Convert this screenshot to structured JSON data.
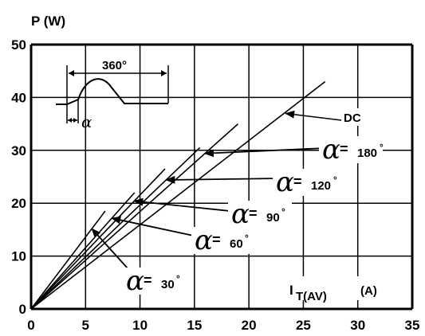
{
  "chart_data": {
    "type": "line",
    "ylabel": "P (W)",
    "xlabel_main": "I",
    "xlabel_sub": "T(AV)",
    "xlabel_unit": "(A)",
    "xlim": [
      0,
      35
    ],
    "ylim": [
      0,
      50
    ],
    "x_ticks": [
      "0",
      "5",
      "10",
      "15",
      "20",
      "25",
      "30",
      "35"
    ],
    "y_ticks": [
      "0",
      "10",
      "20",
      "30",
      "40",
      "50"
    ],
    "grid": true,
    "series": [
      {
        "name": "α = 30°",
        "greek": "α",
        "eq": "=",
        "angle": "30",
        "degree": "°",
        "x": [
          0,
          6.8
        ],
        "y": [
          0,
          18.5
        ]
      },
      {
        "name": "α = 60°",
        "greek": "α",
        "eq": "=",
        "angle": "60",
        "degree": "°",
        "x": [
          0,
          9.5
        ],
        "y": [
          0,
          22
        ]
      },
      {
        "name": "α = 90°",
        "greek": "α",
        "eq": "=",
        "angle": "90",
        "degree": "°",
        "x": [
          0,
          12.3
        ],
        "y": [
          0,
          26.5
        ]
      },
      {
        "name": "α = 120°",
        "greek": "α",
        "eq": "=",
        "angle": "120",
        "degree": "°",
        "x": [
          0,
          15.5
        ],
        "y": [
          0,
          30.5
        ]
      },
      {
        "name": "α = 180°",
        "greek": "α",
        "eq": "=",
        "angle": "180",
        "degree": "°",
        "x": [
          0,
          19
        ],
        "y": [
          0,
          35
        ]
      },
      {
        "name": "DC",
        "x": [
          0,
          27
        ],
        "y": [
          0,
          43
        ]
      }
    ],
    "inset": {
      "period_label": "360°",
      "phase_label": "α"
    }
  }
}
